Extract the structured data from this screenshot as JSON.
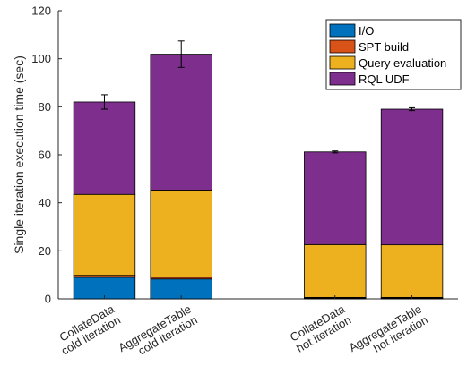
{
  "chart_data": {
    "type": "bar",
    "stacked": true,
    "title": "",
    "xlabel": "",
    "ylabel": "Single iteration execution time (sec)",
    "ylim": [
      0,
      120
    ],
    "yticks": [
      0,
      20,
      40,
      60,
      80,
      100,
      120
    ],
    "grid": false,
    "legend_position": "top-right",
    "categories": [
      [
        "CollateData",
        "cold iteration"
      ],
      [
        "AggregateTable",
        "cold iteration"
      ],
      [
        "CollateData",
        "hot iteration"
      ],
      [
        "AggregateTable",
        "hot iteration"
      ]
    ],
    "category_slots": [
      1,
      2,
      4,
      5
    ],
    "slot_range": [
      0.4,
      5.6
    ],
    "series": [
      {
        "name": "I/O",
        "color": "#0072BD",
        "values": [
          9.0,
          8.3,
          0.3,
          0.3
        ]
      },
      {
        "name": "SPT build",
        "color": "#D95319",
        "values": [
          0.8,
          0.7,
          0.3,
          0.3
        ]
      },
      {
        "name": "Query evaluation",
        "color": "#EDB120",
        "values": [
          33.7,
          36.3,
          22.0,
          21.9
        ]
      },
      {
        "name": "RQL UDF",
        "color": "#7E2F8E",
        "values": [
          38.5,
          56.6,
          38.6,
          56.5
        ]
      }
    ],
    "totals": [
      82.0,
      101.9,
      61.2,
      79.0
    ],
    "error": [
      3.0,
      5.5,
      0.4,
      0.6
    ]
  }
}
